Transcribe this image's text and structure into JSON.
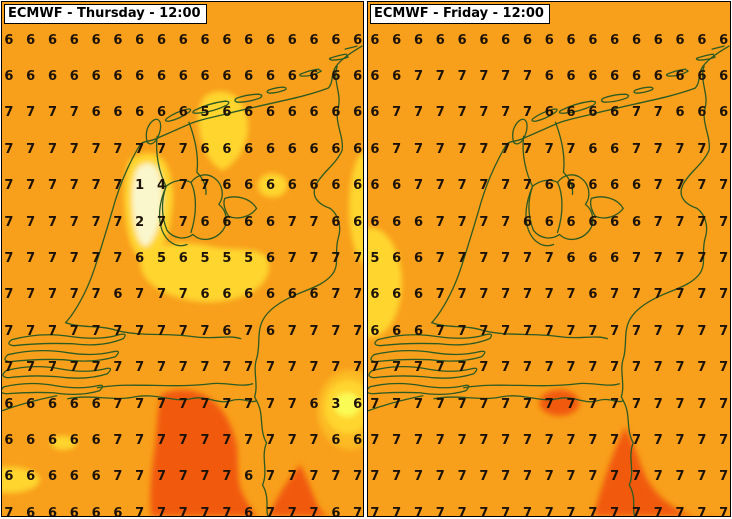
{
  "app": {
    "description_model": "ECMWF",
    "left_title": "ECMWF - Thursday - 12:00",
    "right_title": "ECMWF - Friday - 12:00"
  },
  "colors": {
    "page_bg": "#ffffff",
    "background": "#f89f1b",
    "yellow": "#ffd52e",
    "pale_yellow": "#fbf7cd",
    "bright_yellow": "#fbfb55",
    "red": "#f15a0e",
    "outline": "#2c5a23",
    "number": "#1c1207",
    "title_bg": "#ffffff",
    "title_text": "#000000",
    "panel_border": "#000000"
  },
  "panels": [
    {
      "title": "ECMWF - Thursday - 12:00",
      "grid": [
        [
          6,
          6,
          6,
          6,
          6,
          6,
          6,
          6,
          6,
          6,
          6,
          6,
          6,
          6,
          6,
          6,
          6
        ],
        [
          6,
          6,
          6,
          6,
          6,
          6,
          6,
          6,
          6,
          6,
          6,
          6,
          6,
          6,
          6,
          6,
          6
        ],
        [
          7,
          7,
          7,
          7,
          6,
          6,
          6,
          6,
          6,
          5,
          6,
          6,
          6,
          6,
          6,
          6,
          6
        ],
        [
          7,
          7,
          7,
          7,
          7,
          7,
          7,
          7,
          7,
          6,
          6,
          6,
          6,
          6,
          6,
          6,
          6
        ],
        [
          7,
          7,
          7,
          7,
          7,
          7,
          1,
          4,
          7,
          7,
          6,
          6,
          6,
          6,
          6,
          6,
          6
        ],
        [
          7,
          7,
          7,
          7,
          7,
          7,
          2,
          7,
          7,
          6,
          6,
          6,
          6,
          7,
          7,
          6,
          6
        ],
        [
          7,
          7,
          7,
          7,
          7,
          7,
          6,
          5,
          6,
          5,
          5,
          5,
          6,
          7,
          7,
          7,
          7
        ],
        [
          7,
          7,
          7,
          7,
          7,
          6,
          7,
          7,
          7,
          6,
          6,
          6,
          6,
          6,
          6,
          7,
          7
        ],
        [
          7,
          7,
          7,
          7,
          7,
          7,
          7,
          7,
          7,
          7,
          6,
          7,
          6,
          7,
          7,
          7,
          7
        ],
        [
          7,
          7,
          7,
          7,
          7,
          7,
          7,
          7,
          7,
          7,
          7,
          7,
          7,
          7,
          7,
          7,
          7
        ],
        [
          6,
          6,
          6,
          6,
          6,
          7,
          7,
          7,
          7,
          7,
          7,
          7,
          7,
          7,
          6,
          3,
          6
        ],
        [
          6,
          6,
          6,
          6,
          6,
          7,
          7,
          7,
          7,
          7,
          7,
          7,
          7,
          7,
          7,
          6,
          6
        ],
        [
          6,
          6,
          6,
          6,
          6,
          7,
          7,
          7,
          7,
          7,
          7,
          6,
          7,
          7,
          7,
          7,
          7
        ],
        [
          7,
          6,
          6,
          6,
          6,
          6,
          7,
          7,
          7,
          7,
          7,
          6,
          7,
          7,
          7,
          6,
          7
        ]
      ]
    },
    {
      "title": "ECMWF - Friday - 12:00",
      "grid": [
        [
          6,
          6,
          6,
          6,
          6,
          6,
          6,
          6,
          6,
          6,
          6,
          6,
          6,
          6,
          6,
          6,
          6
        ],
        [
          6,
          6,
          7,
          7,
          7,
          7,
          7,
          7,
          6,
          6,
          6,
          6,
          6,
          6,
          6,
          6,
          6
        ],
        [
          6,
          7,
          7,
          7,
          7,
          7,
          7,
          7,
          6,
          6,
          6,
          6,
          7,
          7,
          6,
          6,
          6
        ],
        [
          6,
          7,
          7,
          7,
          7,
          7,
          7,
          7,
          7,
          7,
          6,
          6,
          7,
          7,
          7,
          7,
          7
        ],
        [
          6,
          6,
          7,
          7,
          7,
          7,
          7,
          7,
          6,
          6,
          6,
          6,
          6,
          7,
          7,
          7,
          7
        ],
        [
          6,
          6,
          6,
          7,
          7,
          7,
          7,
          6,
          6,
          6,
          6,
          6,
          6,
          7,
          7,
          7,
          7
        ],
        [
          5,
          6,
          6,
          7,
          7,
          7,
          7,
          7,
          7,
          6,
          6,
          6,
          7,
          7,
          7,
          7,
          7
        ],
        [
          6,
          6,
          6,
          7,
          7,
          7,
          7,
          7,
          7,
          7,
          6,
          7,
          7,
          7,
          7,
          7,
          7
        ],
        [
          6,
          6,
          6,
          7,
          7,
          7,
          7,
          7,
          7,
          7,
          7,
          7,
          7,
          7,
          7,
          7,
          7
        ],
        [
          7,
          7,
          7,
          7,
          7,
          7,
          7,
          7,
          7,
          7,
          7,
          7,
          7,
          7,
          7,
          7,
          7
        ],
        [
          7,
          7,
          7,
          7,
          7,
          7,
          7,
          7,
          7,
          7,
          7,
          7,
          7,
          7,
          7,
          7,
          7
        ],
        [
          7,
          7,
          7,
          7,
          7,
          7,
          7,
          7,
          7,
          7,
          7,
          7,
          7,
          7,
          7,
          7,
          7
        ],
        [
          7,
          7,
          7,
          7,
          7,
          7,
          7,
          7,
          7,
          7,
          7,
          7,
          7,
          7,
          7,
          7,
          7
        ],
        [
          7,
          7,
          7,
          7,
          7,
          7,
          7,
          7,
          7,
          7,
          7,
          7,
          7,
          7,
          7,
          7,
          7
        ]
      ]
    }
  ]
}
